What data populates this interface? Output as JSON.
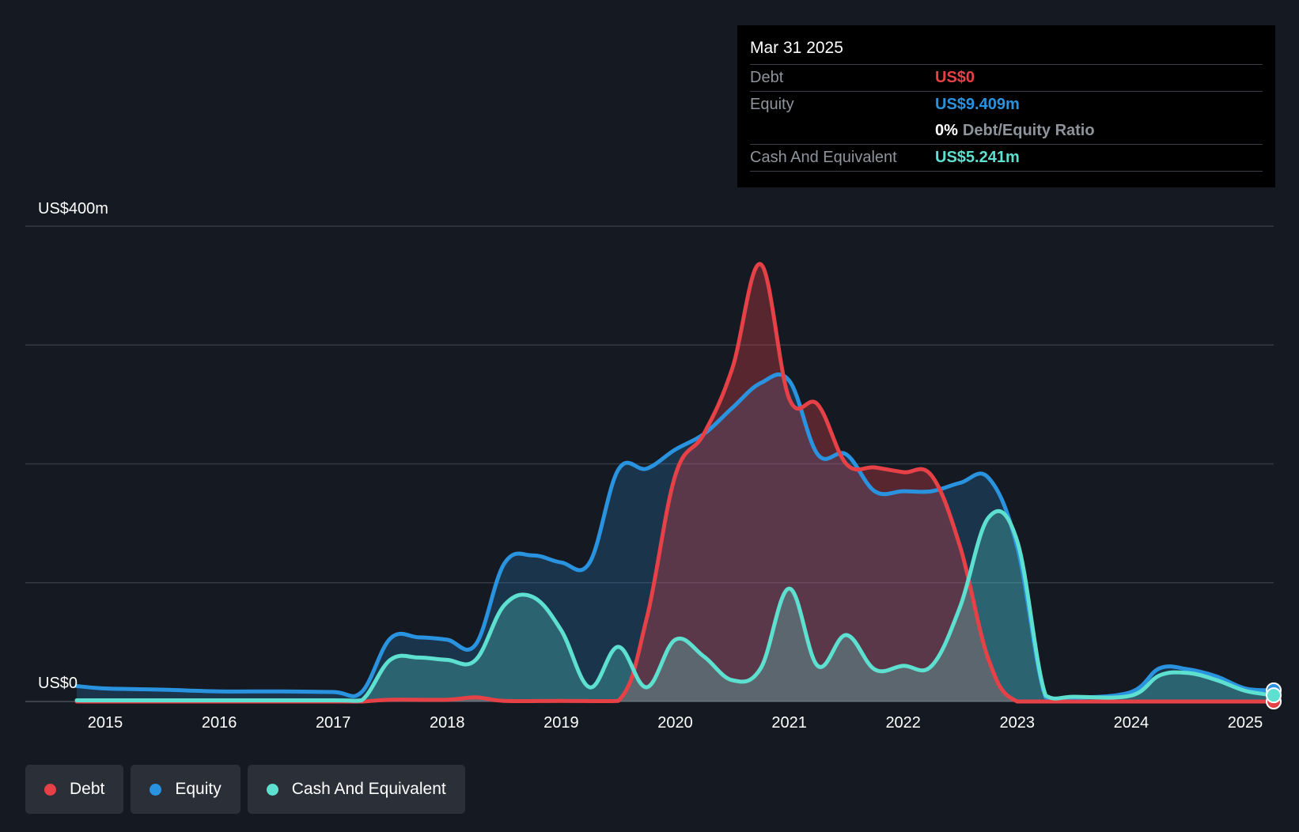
{
  "chart_data": {
    "type": "area",
    "y_top_label": "US$400m",
    "y_zero_label": "US$0",
    "ylim": [
      0,
      400
    ],
    "xlim": [
      2014.75,
      2025.25
    ],
    "gridlines": [
      0,
      100,
      200,
      300,
      400
    ],
    "x_ticks": [
      "2015",
      "2016",
      "2017",
      "2018",
      "2019",
      "2020",
      "2021",
      "2022",
      "2023",
      "2024",
      "2025"
    ],
    "series": [
      {
        "name": "Debt",
        "color": "#e64147",
        "points": [
          [
            2014.75,
            0
          ],
          [
            2017.0,
            0
          ],
          [
            2017.25,
            0
          ],
          [
            2017.5,
            1.5
          ],
          [
            2018.0,
            1.5
          ],
          [
            2018.25,
            3.5
          ],
          [
            2018.5,
            0.5
          ],
          [
            2019.0,
            0.5
          ],
          [
            2019.5,
            0.5
          ],
          [
            2019.75,
            70
          ],
          [
            2020.0,
            190
          ],
          [
            2020.25,
            225
          ],
          [
            2020.5,
            280
          ],
          [
            2020.75,
            368
          ],
          [
            2021.0,
            255
          ],
          [
            2021.25,
            250
          ],
          [
            2021.5,
            200
          ],
          [
            2021.75,
            197
          ],
          [
            2022.0,
            193
          ],
          [
            2022.25,
            190
          ],
          [
            2022.5,
            130
          ],
          [
            2022.75,
            35
          ],
          [
            2023.0,
            0
          ],
          [
            2023.5,
            0
          ],
          [
            2024.0,
            0
          ],
          [
            2024.5,
            0
          ],
          [
            2025.0,
            0
          ],
          [
            2025.25,
            0
          ]
        ]
      },
      {
        "name": "Equity",
        "color": "#2a93e0",
        "points": [
          [
            2014.75,
            13
          ],
          [
            2015.0,
            11
          ],
          [
            2015.5,
            10
          ],
          [
            2016.0,
            8.5
          ],
          [
            2016.5,
            8.5
          ],
          [
            2017.0,
            8
          ],
          [
            2017.25,
            8
          ],
          [
            2017.5,
            53
          ],
          [
            2017.75,
            54
          ],
          [
            2018.0,
            52
          ],
          [
            2018.25,
            48
          ],
          [
            2018.5,
            116
          ],
          [
            2018.75,
            123
          ],
          [
            2019.0,
            117
          ],
          [
            2019.25,
            117
          ],
          [
            2019.5,
            195
          ],
          [
            2019.75,
            196
          ],
          [
            2020.0,
            212
          ],
          [
            2020.25,
            225
          ],
          [
            2020.5,
            247
          ],
          [
            2020.75,
            268
          ],
          [
            2021.0,
            270
          ],
          [
            2021.25,
            208
          ],
          [
            2021.5,
            208
          ],
          [
            2021.75,
            177
          ],
          [
            2022.0,
            177
          ],
          [
            2022.25,
            177
          ],
          [
            2022.5,
            184
          ],
          [
            2022.75,
            188
          ],
          [
            2023.0,
            130
          ],
          [
            2023.25,
            3.5
          ],
          [
            2023.5,
            3
          ],
          [
            2024.0,
            8
          ],
          [
            2024.25,
            28
          ],
          [
            2024.5,
            27
          ],
          [
            2024.75,
            21
          ],
          [
            2025.0,
            11
          ],
          [
            2025.25,
            9.409
          ]
        ]
      },
      {
        "name": "Cash And Equivalent",
        "color": "#5de0cf",
        "points": [
          [
            2014.75,
            1
          ],
          [
            2015.0,
            1
          ],
          [
            2016.0,
            1
          ],
          [
            2017.0,
            1
          ],
          [
            2017.25,
            1
          ],
          [
            2017.5,
            35
          ],
          [
            2017.75,
            37
          ],
          [
            2018.0,
            35
          ],
          [
            2018.25,
            35
          ],
          [
            2018.5,
            81
          ],
          [
            2018.75,
            88
          ],
          [
            2019.0,
            60
          ],
          [
            2019.25,
            12
          ],
          [
            2019.5,
            46
          ],
          [
            2019.75,
            12
          ],
          [
            2020.0,
            52
          ],
          [
            2020.25,
            38
          ],
          [
            2020.5,
            18
          ],
          [
            2020.75,
            28
          ],
          [
            2021.0,
            95
          ],
          [
            2021.25,
            30
          ],
          [
            2021.5,
            56
          ],
          [
            2021.75,
            27
          ],
          [
            2022.0,
            30
          ],
          [
            2022.25,
            30
          ],
          [
            2022.5,
            80
          ],
          [
            2022.75,
            155
          ],
          [
            2023.0,
            135
          ],
          [
            2023.25,
            5
          ],
          [
            2023.5,
            4
          ],
          [
            2024.0,
            5
          ],
          [
            2024.25,
            22
          ],
          [
            2024.5,
            24
          ],
          [
            2024.75,
            18
          ],
          [
            2025.0,
            9
          ],
          [
            2025.25,
            5.241
          ]
        ]
      }
    ]
  },
  "tooltip": {
    "date": "Mar 31 2025",
    "debt_label": "Debt",
    "debt_value": "US$0",
    "equity_label": "Equity",
    "equity_value": "US$9.409m",
    "ratio_value": "0%",
    "ratio_label": "Debt/Equity Ratio",
    "cash_label": "Cash And Equivalent",
    "cash_value": "US$5.241m"
  },
  "legend": [
    {
      "label": "Debt",
      "color": "#e64147"
    },
    {
      "label": "Equity",
      "color": "#2a93e0"
    },
    {
      "label": "Cash And Equivalent",
      "color": "#5de0cf"
    }
  ],
  "colors": {
    "background": "#151a22",
    "gridline": "#343a44",
    "debt": "#e64147",
    "equity": "#2a93e0",
    "cash": "#5de0cf"
  }
}
